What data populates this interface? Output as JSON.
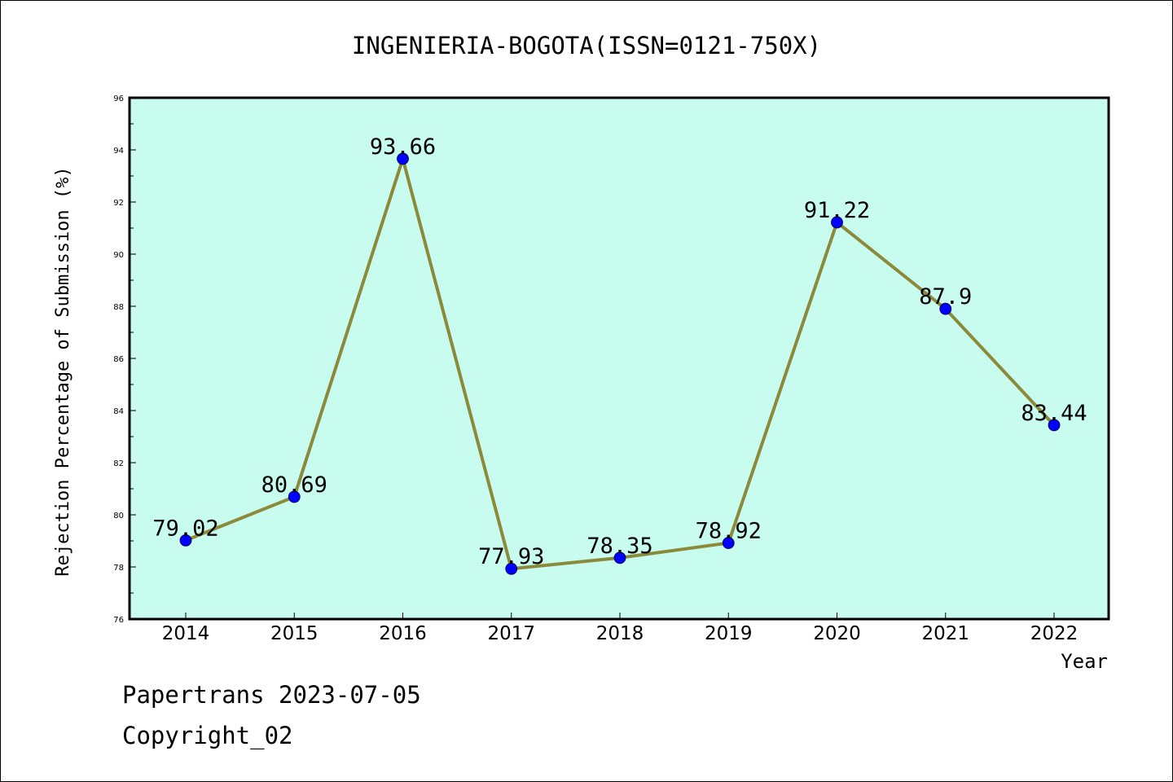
{
  "chart_data": {
    "type": "line",
    "title": "INGENIERIA-BOGOTA(ISSN=0121-750X)",
    "xlabel": "Year",
    "ylabel": "Rejection Percentage of Submission (%)",
    "ylim": [
      76,
      96
    ],
    "y_ticks": [
      76,
      78,
      80,
      82,
      84,
      86,
      88,
      90,
      92,
      94,
      96
    ],
    "categories": [
      "2014",
      "2015",
      "2016",
      "2017",
      "2018",
      "2019",
      "2020",
      "2021",
      "2022"
    ],
    "values": [
      79.02,
      80.69,
      93.66,
      77.93,
      78.35,
      78.92,
      91.22,
      87.9,
      83.44
    ],
    "data_labels": [
      "79.02",
      "80.69",
      "93.66",
      "77.93",
      "78.35",
      "78.92",
      "91.22",
      "87.9",
      "83.44"
    ],
    "grid": false,
    "colors": {
      "plot_background": "#c8fcee",
      "line": "#8b8a3a",
      "marker": "#0000ff"
    }
  },
  "footer": {
    "line1": "Papertrans 2023-07-05",
    "line2": "Copyright_02"
  }
}
